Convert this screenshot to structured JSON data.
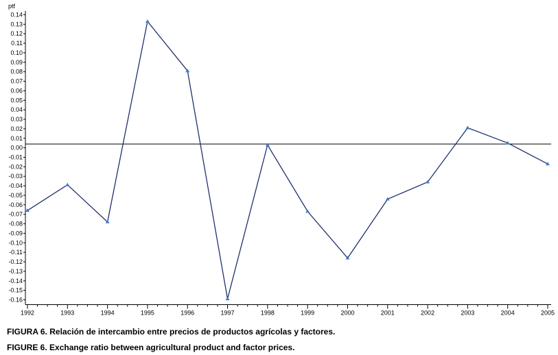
{
  "chart_data": {
    "type": "line",
    "ylabel": "ptf",
    "x": [
      1992,
      1993,
      1994,
      1995,
      1996,
      1997,
      1998,
      1999,
      2000,
      2001,
      2002,
      2003,
      2004,
      2005
    ],
    "x_tick_labels": [
      "1992",
      "1993",
      "1994",
      "1995",
      "1996",
      "1997",
      "1998",
      "1999",
      "2000",
      "2001",
      "2002",
      "2003",
      "2004",
      "2005"
    ],
    "series": [
      {
        "values": [
          -0.066,
          -0.039,
          -0.078,
          0.133,
          0.081,
          -0.159,
          0.003,
          -0.067,
          -0.116,
          -0.054,
          -0.036,
          0.021,
          0.005,
          -0.017
        ]
      }
    ],
    "reference_line_y": 0.004,
    "ylim": [
      -0.165,
      0.145
    ],
    "y_ticks": [
      -0.16,
      -0.15,
      -0.14,
      -0.13,
      -0.12,
      -0.11,
      -0.1,
      -0.09,
      -0.08,
      -0.07,
      -0.06,
      -0.05,
      -0.04,
      -0.03,
      -0.02,
      -0.01,
      0.0,
      0.01,
      0.02,
      0.03,
      0.04,
      0.05,
      0.06,
      0.07,
      0.08,
      0.09,
      0.1,
      0.11,
      0.12,
      0.13,
      0.14
    ],
    "y_tick_labels": [
      "-0.16",
      "-0.15",
      "-0.14",
      "-0.13",
      "-0.12",
      "-0.11",
      "-0.10",
      "-0.09",
      "-0.08",
      "-0.07",
      "-0.06",
      "-0.05",
      "-0.04",
      "-0.03",
      "-0.02",
      "-0.01",
      "0.00",
      "0.01",
      "0.02",
      "0.03",
      "0.04",
      "0.05",
      "0.06",
      "0.07",
      "0.08",
      "0.09",
      "0.10",
      "0.11",
      "0.12",
      "0.13",
      "0.14"
    ],
    "grid": false,
    "colors": {
      "line": "#1f2f6e",
      "marker": "#3d7cc9",
      "axis": "#000000"
    }
  },
  "captions": {
    "spanish": "FIGURA 6. Relación de intercambio entre precios de productos agrícolas y factores.",
    "english": "FIGURE 6. Exchange ratio between agricultural product and factor prices."
  }
}
